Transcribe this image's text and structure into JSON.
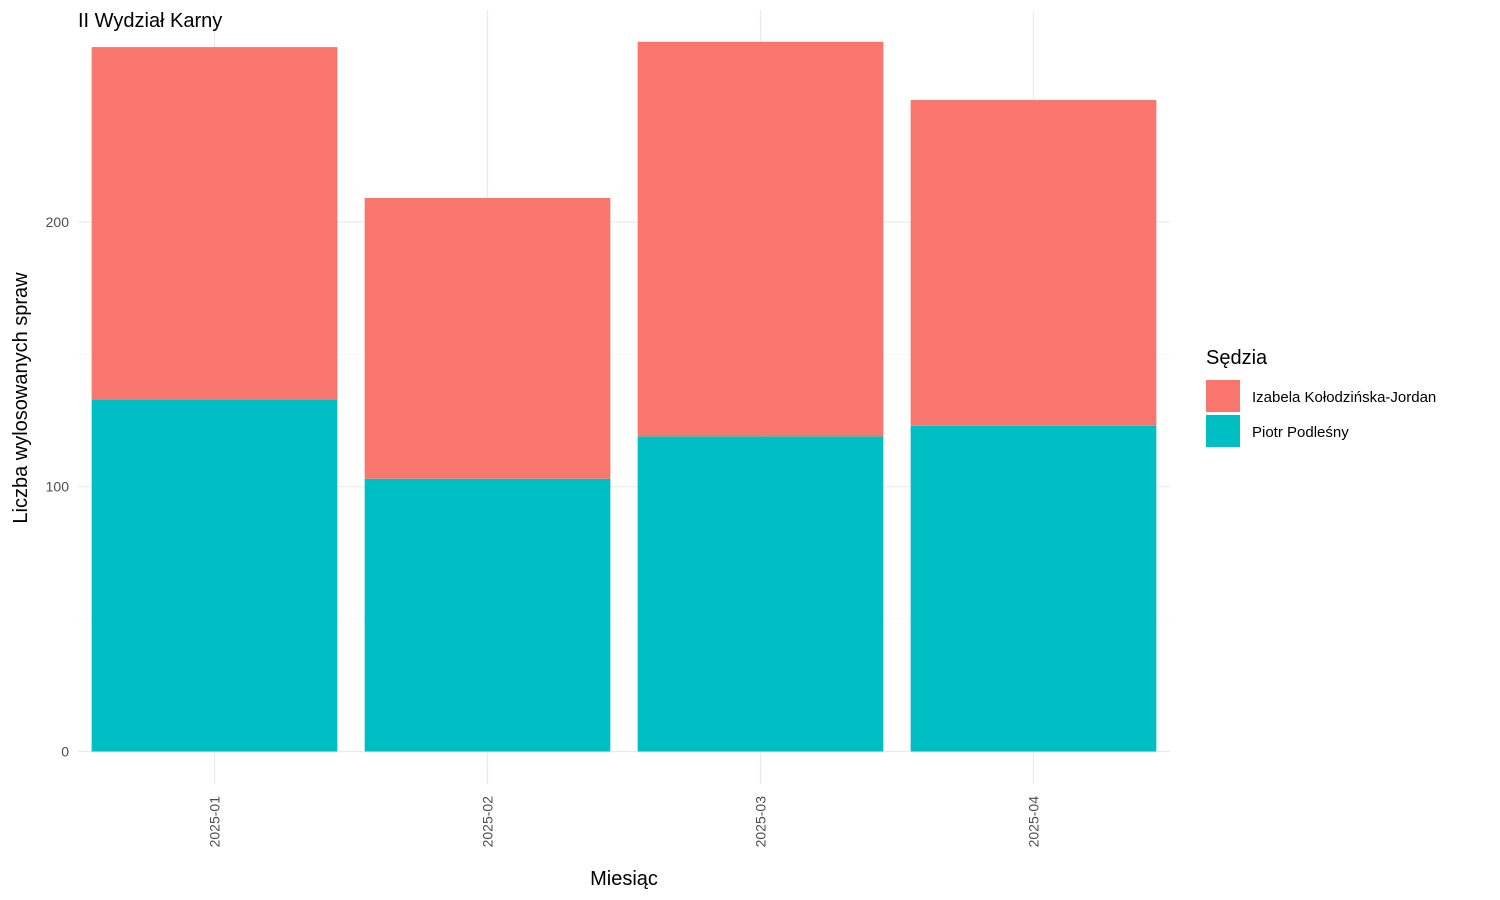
{
  "chart_data": {
    "type": "bar",
    "stacked": true,
    "title": "II Wydział Karny",
    "xlabel": "Miesiąc",
    "ylabel": "Liczba wylosowanych spraw",
    "categories": [
      "2025-01",
      "2025-02",
      "2025-03",
      "2025-04"
    ],
    "series": [
      {
        "name": "Izabela Kołodzińska-Jordan",
        "color": "#F8766D",
        "values": [
          133,
          106,
          149,
          123
        ]
      },
      {
        "name": "Piotr Podleśny",
        "color": "#00BFC4",
        "values": [
          133,
          103,
          119,
          123
        ]
      }
    ],
    "stack_order": [
      "Piotr Podleśny",
      "Izabela Kołodzińska-Jordan"
    ],
    "ylim": [
      -10,
      280
    ],
    "yticks": [
      0,
      100,
      200
    ],
    "grid": true,
    "legend": {
      "title": "Sędzia",
      "position": "right"
    },
    "x_tick_rotation": "vertical"
  }
}
